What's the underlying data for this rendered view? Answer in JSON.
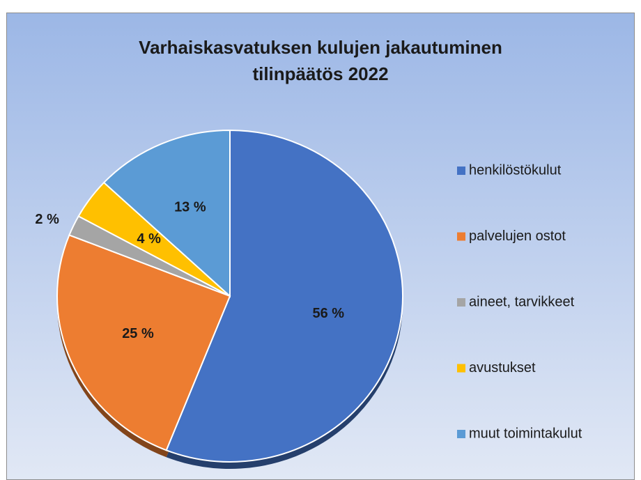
{
  "chart_data": {
    "type": "pie",
    "title": [
      "Varhaiskasvatuksen kulujen jakautuminen",
      "tilinpäätös 2022"
    ],
    "categories": [
      "henkilöstökulut",
      "palvelujen ostot",
      "aineet, tarvikkeet",
      "avustukset",
      "muut toimintakulut"
    ],
    "values": [
      56,
      25,
      2,
      4,
      13
    ],
    "value_labels": [
      "56 %",
      "25 %",
      "2 %",
      "4 %",
      "13 %"
    ],
    "colors": [
      "#4472c4",
      "#ed7d31",
      "#a5a5a5",
      "#ffc000",
      "#5b9bd5"
    ],
    "legend": "right"
  }
}
